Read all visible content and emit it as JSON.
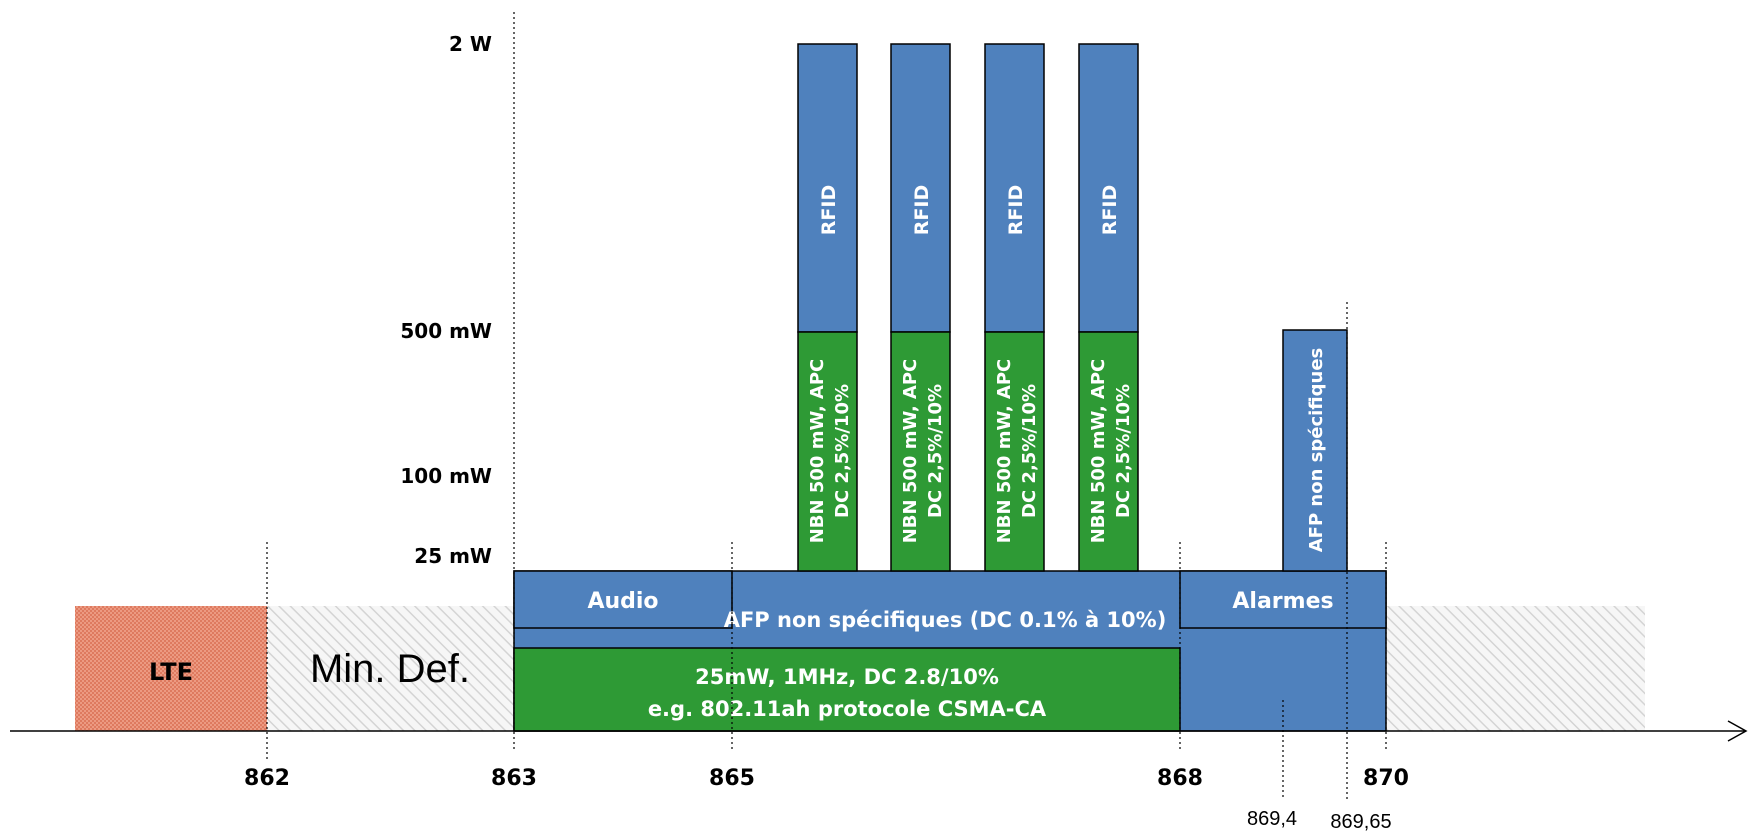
{
  "power_levels": [
    {
      "label": "2 W"
    },
    {
      "label": "500 mW"
    },
    {
      "label": "100 mW"
    },
    {
      "label": "25 mW"
    }
  ],
  "frequency_ticks": [
    {
      "label": "862"
    },
    {
      "label": "863"
    },
    {
      "label": "865"
    },
    {
      "label": "868"
    },
    {
      "label": "870"
    }
  ],
  "sub_ticks": [
    {
      "label": "869,4"
    },
    {
      "label": "869,65"
    }
  ],
  "regions": {
    "lte": "LTE",
    "min_def": "Min. Def."
  },
  "bands": {
    "audio": "Audio",
    "afp_main": "AFP non spécifiques (DC 0.1% à 10%)",
    "alarmes": "Alarmes",
    "green_line1": "25mW, 1MHz, DC 2.8/10%",
    "green_line2": "e.g. 802.11ah protocole CSMA-CA",
    "afp_narrow": "AFP non spécifiques"
  },
  "channels": [
    {
      "rfid": "RFID",
      "nbn_line1": "NBN 500 mW, APC",
      "nbn_line2": "DC 2,5%/10%"
    },
    {
      "rfid": "RFID",
      "nbn_line1": "NBN 500 mW, APC",
      "nbn_line2": "DC 2,5%/10%"
    },
    {
      "rfid": "RFID",
      "nbn_line1": "NBN 500 mW, APC",
      "nbn_line2": "DC 2,5%/10%"
    },
    {
      "rfid": "RFID",
      "nbn_line1": "NBN 500 mW, APC",
      "nbn_line2": "DC 2,5%/10%"
    }
  ],
  "colors": {
    "blue": "#4f81bd",
    "green": "#2e9a35",
    "lte_red": "#e8917a",
    "hatch_gray": "#d9d9d9"
  }
}
